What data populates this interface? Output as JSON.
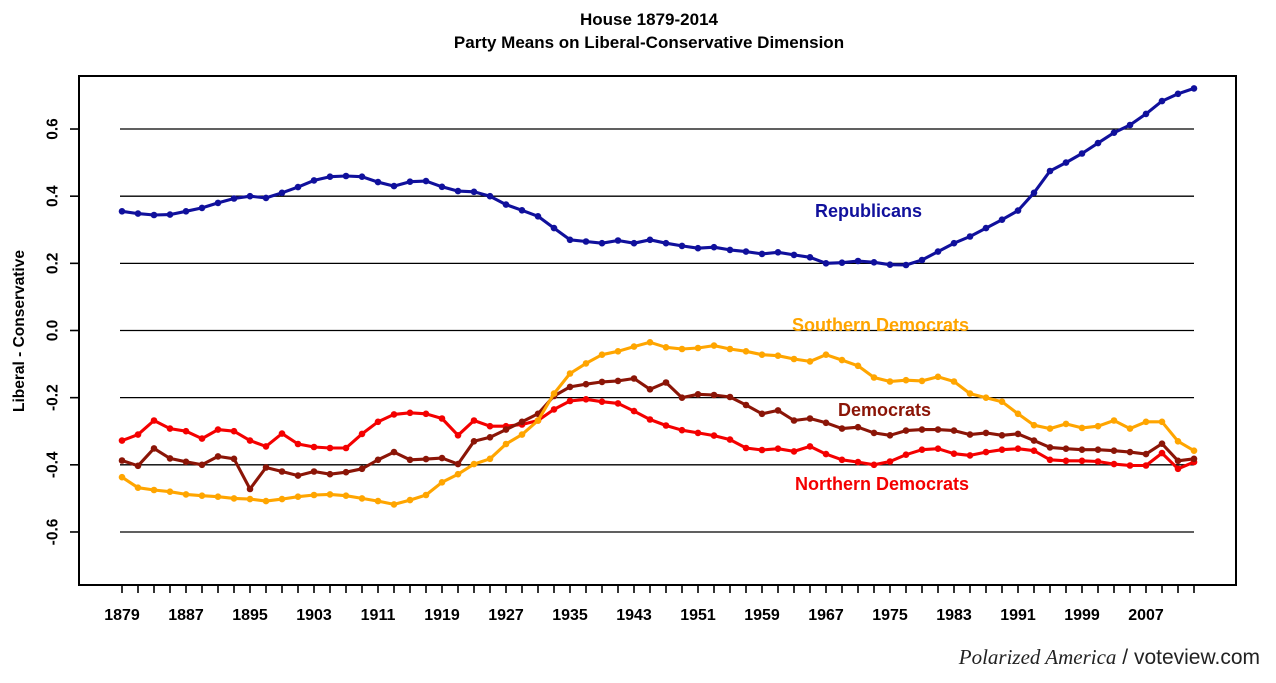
{
  "chart_data": {
    "type": "line",
    "title": "House 1879-2014",
    "subtitle": "Party Means on Liberal-Conservative Dimension",
    "xlabel": "",
    "ylabel": "Liberal - Conservative",
    "grid": "horizontal gridlines at each y tick, full plot box drawn",
    "legend": "inline colored labels placed on the chart",
    "x_tick_step_years": 2,
    "x_tick_labels": [
      "1879",
      "1887",
      "1895",
      "1903",
      "1911",
      "1919",
      "1927",
      "1935",
      "1943",
      "1951",
      "1959",
      "1967",
      "1975",
      "1983",
      "1991",
      "1999",
      "2007"
    ],
    "y_tick_labels": [
      "0.6",
      "0.4",
      "0.2",
      "0.0",
      "-0.2",
      "-0.4",
      "-0.6"
    ],
    "y_tick_values": [
      0.6,
      0.4,
      0.2,
      0.0,
      -0.2,
      -0.4,
      -0.6
    ],
    "ylim": [
      -0.76,
      0.77
    ],
    "xlim": [
      1873,
      2019
    ],
    "x": [
      1879,
      1881,
      1883,
      1885,
      1887,
      1889,
      1891,
      1893,
      1895,
      1897,
      1899,
      1901,
      1903,
      1905,
      1907,
      1909,
      1911,
      1913,
      1915,
      1917,
      1919,
      1921,
      1923,
      1925,
      1927,
      1929,
      1931,
      1933,
      1935,
      1937,
      1939,
      1941,
      1943,
      1945,
      1947,
      1949,
      1951,
      1953,
      1955,
      1957,
      1959,
      1961,
      1963,
      1965,
      1967,
      1969,
      1971,
      1973,
      1975,
      1977,
      1979,
      1981,
      1983,
      1985,
      1987,
      1989,
      1991,
      1993,
      1995,
      1997,
      1999,
      2001,
      2003,
      2005,
      2007,
      2009,
      2011,
      2013
    ],
    "series": [
      {
        "name": "Republicans",
        "color": "#10109C",
        "values": [
          0.355,
          0.348,
          0.344,
          0.345,
          0.355,
          0.365,
          0.38,
          0.393,
          0.4,
          0.395,
          0.41,
          0.427,
          0.447,
          0.458,
          0.46,
          0.458,
          0.442,
          0.43,
          0.443,
          0.445,
          0.428,
          0.415,
          0.413,
          0.4,
          0.375,
          0.358,
          0.34,
          0.305,
          0.27,
          0.265,
          0.26,
          0.268,
          0.26,
          0.27,
          0.26,
          0.252,
          0.245,
          0.248,
          0.24,
          0.235,
          0.228,
          0.233,
          0.225,
          0.218,
          0.2,
          0.202,
          0.207,
          0.203,
          0.196,
          0.195,
          0.21,
          0.235,
          0.26,
          0.28,
          0.305,
          0.33,
          0.357,
          0.41,
          0.475,
          0.5,
          0.527,
          0.558,
          0.589,
          0.612,
          0.645,
          0.683,
          0.705,
          0.721
        ]
      },
      {
        "name": "Southern Democrats",
        "color": "#FFA500",
        "values": [
          -0.437,
          -0.468,
          -0.475,
          -0.48,
          -0.488,
          -0.492,
          -0.495,
          -0.5,
          -0.502,
          -0.508,
          -0.502,
          -0.495,
          -0.49,
          -0.488,
          -0.492,
          -0.5,
          -0.508,
          -0.518,
          -0.505,
          -0.49,
          -0.452,
          -0.428,
          -0.398,
          -0.382,
          -0.338,
          -0.31,
          -0.268,
          -0.188,
          -0.128,
          -0.098,
          -0.072,
          -0.062,
          -0.048,
          -0.035,
          -0.05,
          -0.055,
          -0.052,
          -0.045,
          -0.055,
          -0.062,
          -0.072,
          -0.075,
          -0.085,
          -0.092,
          -0.072,
          -0.088,
          -0.105,
          -0.14,
          -0.152,
          -0.148,
          -0.15,
          -0.138,
          -0.152,
          -0.188,
          -0.2,
          -0.212,
          -0.248,
          -0.282,
          -0.292,
          -0.278,
          -0.29,
          -0.285,
          -0.268,
          -0.292,
          -0.272,
          -0.272,
          -0.33,
          -0.358
        ]
      },
      {
        "name": "Democrats",
        "color": "#8B1507",
        "values": [
          -0.387,
          -0.403,
          -0.351,
          -0.381,
          -0.391,
          -0.4,
          -0.375,
          -0.382,
          -0.472,
          -0.408,
          -0.42,
          -0.432,
          -0.42,
          -0.428,
          -0.422,
          -0.412,
          -0.385,
          -0.362,
          -0.385,
          -0.383,
          -0.38,
          -0.398,
          -0.33,
          -0.318,
          -0.295,
          -0.272,
          -0.248,
          -0.195,
          -0.168,
          -0.16,
          -0.153,
          -0.15,
          -0.143,
          -0.175,
          -0.155,
          -0.2,
          -0.19,
          -0.192,
          -0.198,
          -0.222,
          -0.248,
          -0.238,
          -0.268,
          -0.262,
          -0.275,
          -0.292,
          -0.288,
          -0.305,
          -0.312,
          -0.298,
          -0.295,
          -0.295,
          -0.298,
          -0.31,
          -0.305,
          -0.312,
          -0.308,
          -0.328,
          -0.348,
          -0.352,
          -0.355,
          -0.355,
          -0.358,
          -0.362,
          -0.368,
          -0.337,
          -0.388,
          -0.382
        ]
      },
      {
        "name": "Northern Democrats",
        "color": "#F40000",
        "values": [
          -0.328,
          -0.31,
          -0.268,
          -0.292,
          -0.3,
          -0.322,
          -0.295,
          -0.3,
          -0.328,
          -0.345,
          -0.307,
          -0.338,
          -0.347,
          -0.35,
          -0.35,
          -0.308,
          -0.272,
          -0.25,
          -0.245,
          -0.248,
          -0.262,
          -0.312,
          -0.268,
          -0.285,
          -0.285,
          -0.28,
          -0.268,
          -0.235,
          -0.21,
          -0.205,
          -0.212,
          -0.217,
          -0.24,
          -0.265,
          -0.283,
          -0.297,
          -0.305,
          -0.313,
          -0.325,
          -0.35,
          -0.356,
          -0.352,
          -0.36,
          -0.345,
          -0.368,
          -0.385,
          -0.392,
          -0.4,
          -0.39,
          -0.37,
          -0.355,
          -0.352,
          -0.367,
          -0.372,
          -0.362,
          -0.355,
          -0.352,
          -0.358,
          -0.385,
          -0.388,
          -0.388,
          -0.39,
          -0.398,
          -0.402,
          -0.402,
          -0.365,
          -0.412,
          -0.392
        ]
      }
    ]
  },
  "footer": {
    "source": "Polarized America",
    "site": " / voteview.com"
  }
}
